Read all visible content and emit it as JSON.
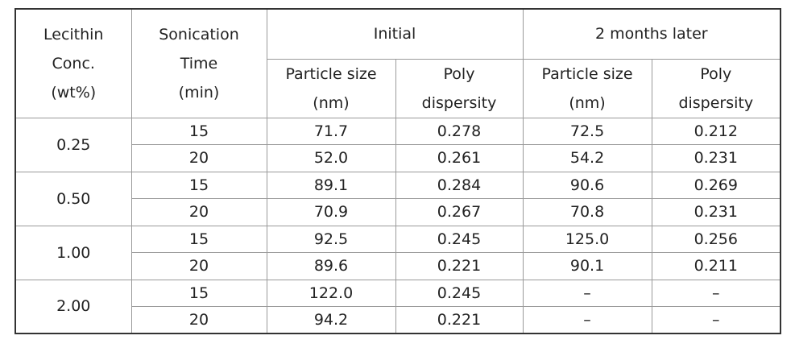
{
  "table": {
    "header": {
      "concentration": [
        "Lecithin",
        "Conc.",
        "(wt%)"
      ],
      "time": [
        "Sonication",
        "Time",
        "(min)"
      ],
      "groups": [
        "Initial",
        "2 months later"
      ],
      "columns": [
        [
          "Particle size",
          "(nm)"
        ],
        [
          "Poly",
          "dispersity"
        ],
        [
          "Particle size",
          "(nm)"
        ],
        [
          "Poly",
          "dispersity"
        ]
      ]
    },
    "groups": [
      {
        "concentration": "0.25",
        "rows": [
          [
            "15",
            "71.7",
            "0.278",
            "72.5",
            "0.212"
          ],
          [
            "20",
            "52.0",
            "0.261",
            "54.2",
            "0.231"
          ]
        ]
      },
      {
        "concentration": "0.50",
        "rows": [
          [
            "15",
            "89.1",
            "0.284",
            "90.6",
            "0.269"
          ],
          [
            "20",
            "70.9",
            "0.267",
            "70.8",
            "0.231"
          ]
        ]
      },
      {
        "concentration": "1.00",
        "rows": [
          [
            "15",
            "92.5",
            "0.245",
            "125.0",
            "0.256"
          ],
          [
            "20",
            "89.6",
            "0.221",
            "90.1",
            "0.211"
          ]
        ]
      },
      {
        "concentration": "2.00",
        "rows": [
          [
            "15",
            "122.0",
            "0.245",
            "–",
            "–"
          ],
          [
            "20",
            "94.2",
            "0.221",
            "–",
            "–"
          ]
        ]
      }
    ]
  }
}
